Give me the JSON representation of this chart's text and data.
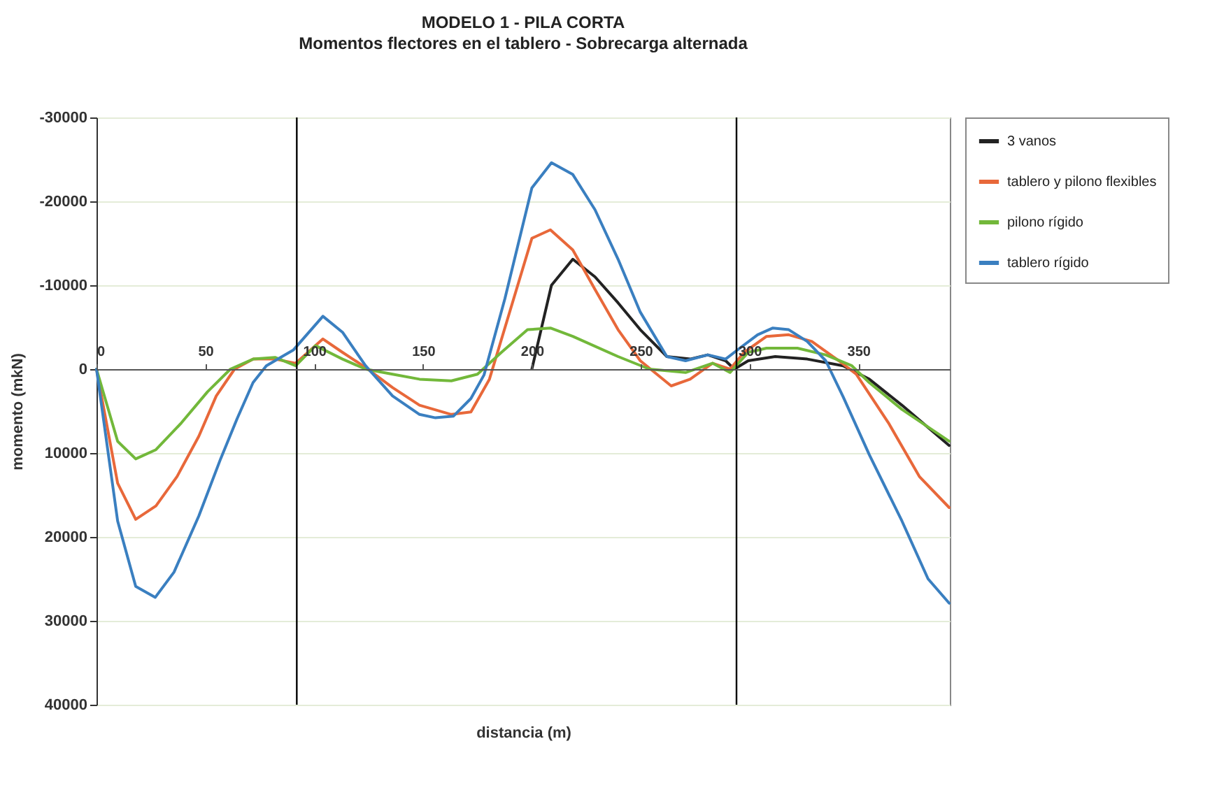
{
  "chart_data": {
    "type": "line",
    "title": "MODELO 1 - PILA CORTA",
    "subtitle": "Momentos flectores en el tablero - Sobrecarga alternada",
    "xlabel": "distancia (m)",
    "ylabel": "momento (mkN)",
    "xlim": [
      0,
      392
    ],
    "xticks": [
      0,
      50,
      100,
      150,
      200,
      250,
      300,
      350
    ],
    "ylim": [
      40000,
      -30000
    ],
    "yticks": [
      -30000,
      -20000,
      -10000,
      0,
      10000,
      20000,
      30000,
      40000
    ],
    "grid": "y",
    "legend": "right",
    "marker": "none",
    "line_style": "solid",
    "ref_lines": [
      {
        "axis": "x",
        "value": 92,
        "color": "#000000"
      },
      {
        "axis": "x",
        "value": 294,
        "color": "#000000"
      }
    ],
    "series": [
      {
        "name": "3 vanos",
        "color": "#222222",
        "x": [
          200,
          209,
          218.8,
          229,
          239.6,
          249.8,
          262,
          272.7,
          280.8,
          289,
          293,
          299.4,
          311.8,
          326.5,
          343,
          355,
          370,
          391.7
        ],
        "values": [
          0,
          -10000,
          -13100,
          -11000,
          -7900,
          -4700,
          -1500,
          -1200,
          -1700,
          -1000,
          0,
          -1000,
          -1500,
          -1200,
          -400,
          1200,
          4300,
          9100
        ]
      },
      {
        "name": "tablero y pilono flexibles",
        "color": "#e8683a",
        "x": [
          0,
          9.7,
          18,
          27.3,
          37,
          47,
          55,
          63.4,
          72,
          82,
          91.5,
          104,
          113,
          123.6,
          136,
          148.4,
          163,
          172,
          180.5,
          200,
          208.5,
          218.8,
          229,
          239.6,
          249.8,
          264,
          272.7,
          283,
          291,
          297.5,
          307.8,
          318,
          328.6,
          341,
          349,
          363.8,
          378,
          391.7
        ],
        "values": [
          0,
          13600,
          17900,
          16300,
          12800,
          8000,
          3200,
          0,
          -1200,
          -1200,
          -700,
          -3600,
          -2000,
          -200,
          2200,
          4300,
          5400,
          5100,
          1200,
          -15600,
          -16600,
          -14200,
          -9500,
          -4700,
          -1000,
          2000,
          1200,
          -700,
          0,
          -2000,
          -3900,
          -4100,
          -3300,
          -1000,
          600,
          6400,
          12800,
          16500
        ]
      },
      {
        "name": "pilono rígido",
        "color": "#72b83a",
        "x": [
          0,
          9.7,
          18,
          27.3,
          39,
          51,
          61.5,
          72,
          82,
          91.5,
          100.6,
          113,
          123.6,
          136,
          148.4,
          163,
          175,
          186,
          198,
          208.5,
          218.8,
          239.6,
          254,
          270.6,
          283,
          291,
          299.4,
          307.8,
          322,
          335,
          347,
          355,
          370,
          391.7
        ],
        "values": [
          0,
          8600,
          10700,
          9600,
          6400,
          2700,
          0,
          -1200,
          -1400,
          -400,
          -2800,
          -1200,
          0,
          600,
          1200,
          1400,
          600,
          -2000,
          -4700,
          -4900,
          -3900,
          -1500,
          0,
          400,
          -700,
          400,
          -2000,
          -2500,
          -2500,
          -1700,
          -400,
          1600,
          4800,
          8600
        ]
      },
      {
        "name": "tablero rígido",
        "color": "#3a7fc0",
        "x": [
          0,
          9.7,
          18,
          27,
          35.6,
          47,
          57,
          64.6,
          71.9,
          78,
          90.5,
          104,
          113,
          123.6,
          136,
          148.4,
          155.7,
          164,
          172,
          178,
          187.6,
          200,
          209,
          218.8,
          229,
          239.6,
          249.8,
          262,
          270.6,
          280.8,
          289,
          295.5,
          303.7,
          310.7,
          318,
          326.5,
          335,
          343,
          355,
          370,
          382,
          391.7
        ],
        "values": [
          0,
          18100,
          25900,
          27200,
          24200,
          17500,
          10700,
          5900,
          1600,
          -400,
          -2300,
          -6300,
          -4400,
          -400,
          3200,
          5400,
          5800,
          5600,
          3500,
          700,
          -8400,
          -21600,
          -24600,
          -23200,
          -19000,
          -13100,
          -6800,
          -1500,
          -1000,
          -1700,
          -1200,
          -2500,
          -4100,
          -4900,
          -4700,
          -3300,
          -1000,
          3300,
          10200,
          18100,
          25000,
          27900
        ]
      }
    ]
  }
}
